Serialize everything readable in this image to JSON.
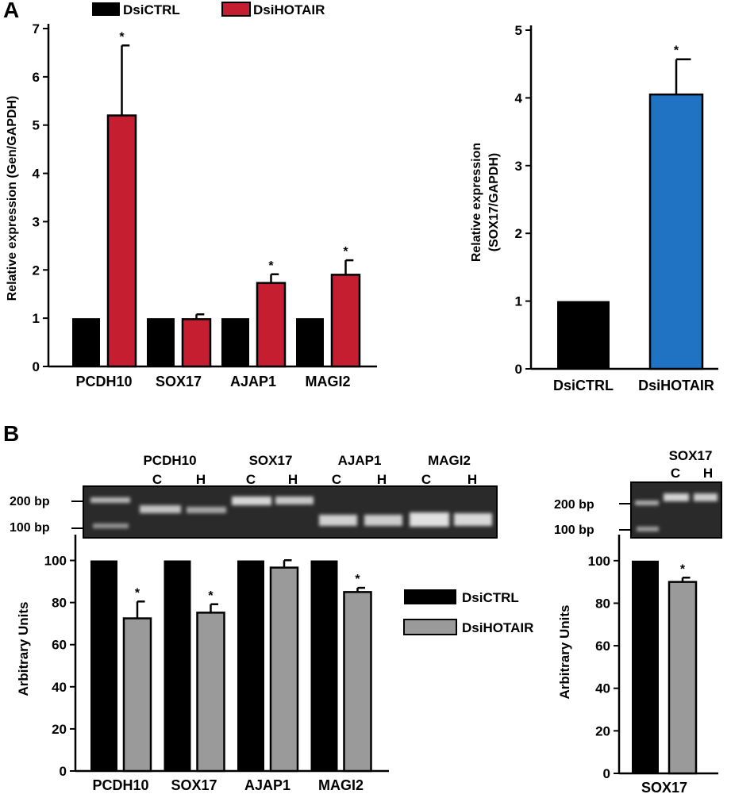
{
  "panels": {
    "a": "A",
    "b": "B"
  },
  "colors": {
    "ctrl": "#000000",
    "hotair_red": "#c41e30",
    "hotair_blue": "#1f73c2",
    "hotair_gray": "#9a9a9a"
  },
  "chart_data": [
    {
      "type": "bar",
      "categories": [
        "PCDH10",
        "SOX17",
        "AJAP1",
        "MAGI2"
      ],
      "series": [
        {
          "name": "DsiCTRL",
          "values": [
            1,
            1,
            1,
            1
          ]
        },
        {
          "name": "DsiHOTAIR",
          "values": [
            5.2,
            0.98,
            1.73,
            1.9
          ],
          "errors": [
            1.45,
            0.1,
            0.18,
            0.3
          ]
        }
      ],
      "significance": [
        "*",
        "",
        "*",
        "*"
      ],
      "ylabel": "Relative expression (Gen/GAPDH)",
      "ylim": [
        0,
        7
      ],
      "yticks": [
        0,
        1,
        2,
        3,
        4,
        5,
        6,
        7
      ],
      "legend": "top"
    },
    {
      "type": "bar",
      "categories": [
        "DsiCTRL",
        "DsiHOTAIR"
      ],
      "values": [
        1,
        4.05
      ],
      "errors": [
        0,
        0.52
      ],
      "significance": [
        "",
        "*"
      ],
      "ylabel_lines": [
        "Relative expression",
        "(SOX17/GAPDH)"
      ],
      "ylim": [
        0,
        5
      ],
      "yticks": [
        0,
        1,
        2,
        3,
        4,
        5
      ]
    },
    {
      "type": "bar",
      "categories": [
        "PCDH10",
        "SOX17",
        "AJAP1",
        "MAGI2"
      ],
      "series": [
        {
          "name": "DsiCTRL",
          "values": [
            100,
            100,
            100,
            100
          ]
        },
        {
          "name": "DsiHOTAIR",
          "values": [
            72.5,
            75.2,
            96.6,
            85
          ],
          "errors": [
            8,
            4,
            3.5,
            2
          ]
        }
      ],
      "significance": [
        "*",
        "*",
        "",
        "*"
      ],
      "ylabel": "Arbitrary Units",
      "ylim": [
        0,
        110
      ],
      "yticks": [
        0,
        20,
        40,
        60,
        80,
        100
      ],
      "legend": "right"
    },
    {
      "type": "bar",
      "categories": [
        "SOX17"
      ],
      "series": [
        {
          "name": "DsiCTRL",
          "values": [
            100
          ]
        },
        {
          "name": "DsiHOTAIR",
          "values": [
            90
          ],
          "errors": [
            2
          ]
        }
      ],
      "significance": [
        "*"
      ],
      "ylabel": "Arbitrary Units",
      "ylim": [
        0,
        110
      ],
      "yticks": [
        0,
        20,
        40,
        60,
        80,
        100
      ]
    }
  ],
  "gel_main": {
    "genes": [
      "PCDH10",
      "SOX17",
      "AJAP1",
      "MAGI2"
    ],
    "lanes": [
      "C",
      "H",
      "C",
      "H",
      "C",
      "H",
      "C",
      "H"
    ],
    "markers": [
      "200 bp",
      "100 bp"
    ]
  },
  "gel_side": {
    "gene": "SOX17",
    "lanes": [
      "C",
      "H"
    ],
    "markers": [
      "200 bp",
      "100 bp"
    ]
  }
}
